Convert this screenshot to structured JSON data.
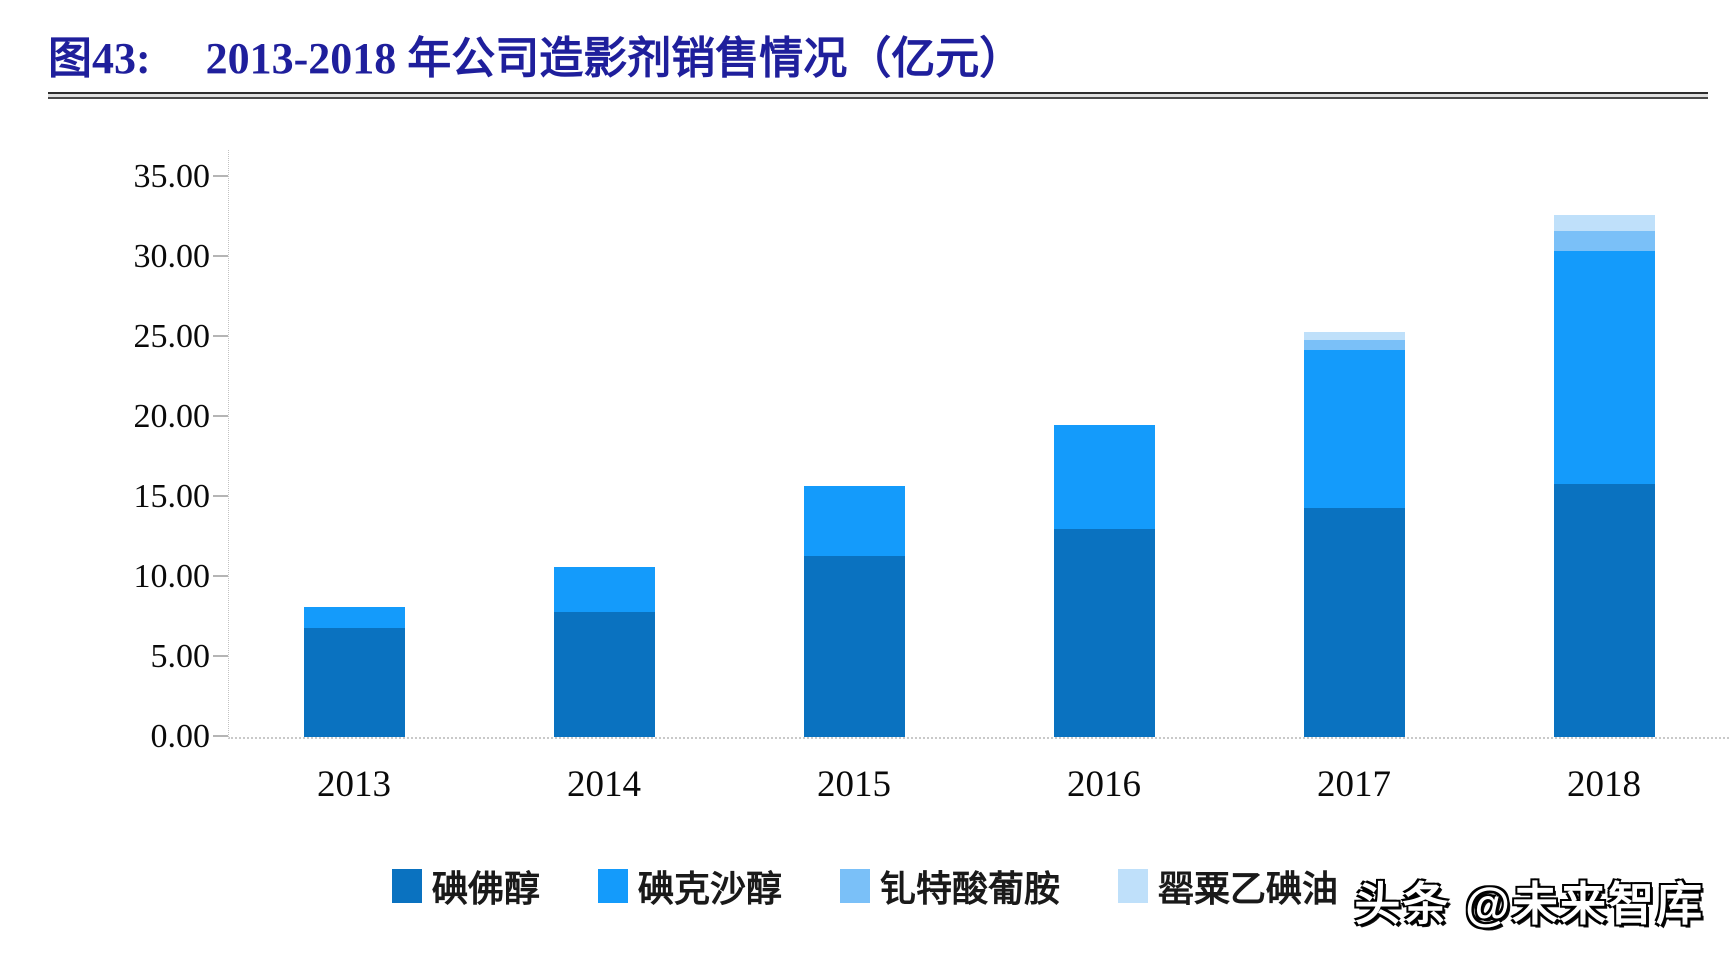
{
  "header": {
    "figure_label": "图43:",
    "title": "2013-2018 年公司造影剂销售情况（亿元）"
  },
  "chart_data": {
    "type": "bar",
    "subtype": "stacked",
    "title": "2013-2018 年公司造影剂销售情况（亿元）",
    "unit": "亿元",
    "categories": [
      "2013",
      "2014",
      "2015",
      "2016",
      "2017",
      "2018"
    ],
    "series": [
      {
        "name": "碘佛醇",
        "color": "#0A72C0",
        "values": [
          6.8,
          7.8,
          11.3,
          13.0,
          14.3,
          15.8
        ]
      },
      {
        "name": "碘克沙醇",
        "color": "#149BFB",
        "values": [
          1.3,
          2.8,
          4.4,
          6.5,
          9.9,
          14.6
        ]
      },
      {
        "name": "钆特酸葡胺",
        "color": "#7AC0F8",
        "values": [
          0,
          0,
          0,
          0,
          0.6,
          1.2
        ]
      },
      {
        "name": "罂粟乙碘油",
        "color": "#BFE0FA",
        "values": [
          0,
          0,
          0,
          0,
          0.5,
          1.0
        ]
      }
    ],
    "totals": [
      8.1,
      10.6,
      15.7,
      19.5,
      25.3,
      32.6
    ],
    "ylim": [
      0,
      35
    ],
    "ytick_step": 5,
    "ytick_labels": [
      "35.00",
      "30.00",
      "25.00",
      "20.00",
      "15.00",
      "10.00",
      "5.00",
      "0.00"
    ],
    "grid": false,
    "legend_position": "bottom"
  },
  "watermark": {
    "text": "头条 @未来智库"
  }
}
